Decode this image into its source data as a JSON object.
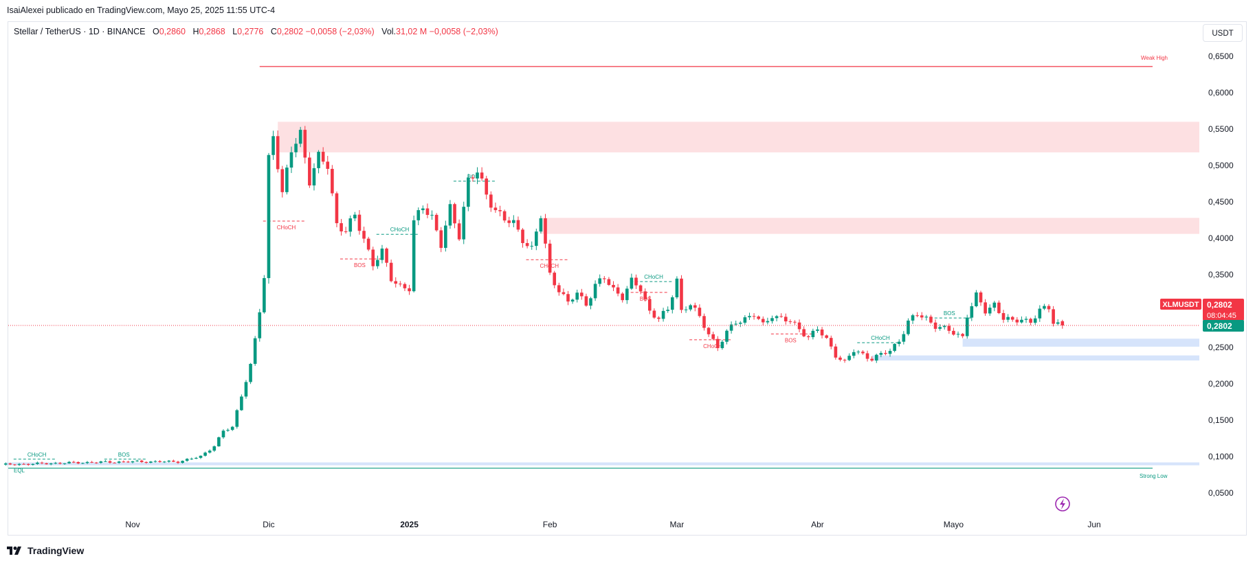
{
  "header": {
    "attribution": "IsaiAlexei publicado en TradingView.com, Mayo 25, 2025 11:55 UTC-4"
  },
  "legend": {
    "symbol": "Stellar / TetherUS · 1D · BINANCE",
    "o_label": "O",
    "o_value": "0,2860",
    "h_label": "H",
    "h_value": "0,2868",
    "l_label": "L",
    "l_value": "0,2776",
    "c_label": "C",
    "c_value": "0,2802",
    "change": "−0,0058 (−2,03%)",
    "vol_label": "Vol.",
    "vol_value": "31,02 M",
    "vol_change": "−0,0058 (−2,03%)"
  },
  "currency_button": "USDT",
  "price_tag": {
    "symbol": "XLMUSDT",
    "price": "0,2802",
    "countdown": "08:04:45",
    "line_price": "0,2802"
  },
  "footer": {
    "brand": "TradingView"
  },
  "colors": {
    "up": "#089981",
    "down": "#f23645",
    "supply_zone": "#fde0e2",
    "demand_zone": "#d6e4fb"
  },
  "chart_data": {
    "type": "candlestick",
    "ylim": [
      0.03,
      0.69
    ],
    "y_ticks": [
      "0,6500",
      "0,6000",
      "0,5500",
      "0,5000",
      "0,4500",
      "0,4000",
      "0,3500",
      "0,3000",
      "0,2500",
      "0,2000",
      "0,1500",
      "0,1000",
      "0,0500"
    ],
    "y_tick_values": [
      0.65,
      0.6,
      0.55,
      0.5,
      0.45,
      0.4,
      0.35,
      0.3,
      0.25,
      0.2,
      0.15,
      0.1,
      0.05
    ],
    "x_ticks": [
      "Nov",
      "Dic",
      "2025",
      "Feb",
      "Mar",
      "Abr",
      "Mayo",
      "Jun"
    ],
    "x_tick_days": [
      0,
      30,
      61,
      92,
      120,
      151,
      181,
      212
    ],
    "last_day": 205,
    "last_price": 0.2802,
    "anchors": [
      [
        -28,
        0.089
      ],
      [
        -10,
        0.092
      ],
      [
        0,
        0.093
      ],
      [
        10,
        0.093
      ],
      [
        15,
        0.1
      ],
      [
        18,
        0.115
      ],
      [
        20,
        0.135
      ],
      [
        22,
        0.14
      ],
      [
        24,
        0.185
      ],
      [
        25,
        0.205
      ],
      [
        26,
        0.225
      ],
      [
        27,
        0.26
      ],
      [
        28,
        0.3
      ],
      [
        29,
        0.345
      ],
      [
        30,
        0.51
      ],
      [
        31,
        0.545
      ],
      [
        33,
        0.46
      ],
      [
        35,
        0.52
      ],
      [
        37,
        0.545
      ],
      [
        39,
        0.48
      ],
      [
        41,
        0.51
      ],
      [
        43,
        0.5
      ],
      [
        45,
        0.42
      ],
      [
        47,
        0.41
      ],
      [
        49,
        0.43
      ],
      [
        51,
        0.4
      ],
      [
        53,
        0.365
      ],
      [
        55,
        0.38
      ],
      [
        57,
        0.345
      ],
      [
        59,
        0.335
      ],
      [
        61,
        0.33
      ],
      [
        62,
        0.42
      ],
      [
        64,
        0.445
      ],
      [
        66,
        0.43
      ],
      [
        68,
        0.39
      ],
      [
        70,
        0.44
      ],
      [
        72,
        0.405
      ],
      [
        74,
        0.48
      ],
      [
        76,
        0.49
      ],
      [
        78,
        0.46
      ],
      [
        80,
        0.44
      ],
      [
        82,
        0.425
      ],
      [
        84,
        0.42
      ],
      [
        86,
        0.4
      ],
      [
        88,
        0.385
      ],
      [
        90,
        0.43
      ],
      [
        91,
        0.39
      ],
      [
        92,
        0.35
      ],
      [
        94,
        0.33
      ],
      [
        96,
        0.31
      ],
      [
        98,
        0.325
      ],
      [
        100,
        0.31
      ],
      [
        102,
        0.335
      ],
      [
        104,
        0.345
      ],
      [
        106,
        0.33
      ],
      [
        108,
        0.32
      ],
      [
        110,
        0.34
      ],
      [
        112,
        0.33
      ],
      [
        114,
        0.3
      ],
      [
        116,
        0.29
      ],
      [
        118,
        0.3
      ],
      [
        120,
        0.345
      ],
      [
        121,
        0.3
      ],
      [
        123,
        0.31
      ],
      [
        125,
        0.29
      ],
      [
        127,
        0.27
      ],
      [
        129,
        0.25
      ],
      [
        131,
        0.27
      ],
      [
        133,
        0.285
      ],
      [
        135,
        0.29
      ],
      [
        137,
        0.295
      ],
      [
        139,
        0.28
      ],
      [
        141,
        0.295
      ],
      [
        143,
        0.29
      ],
      [
        145,
        0.285
      ],
      [
        147,
        0.275
      ],
      [
        149,
        0.265
      ],
      [
        151,
        0.275
      ],
      [
        153,
        0.26
      ],
      [
        155,
        0.24
      ],
      [
        157,
        0.23
      ],
      [
        159,
        0.245
      ],
      [
        161,
        0.24
      ],
      [
        163,
        0.235
      ],
      [
        165,
        0.24
      ],
      [
        167,
        0.245
      ],
      [
        169,
        0.26
      ],
      [
        171,
        0.285
      ],
      [
        173,
        0.295
      ],
      [
        175,
        0.29
      ],
      [
        177,
        0.28
      ],
      [
        179,
        0.275
      ],
      [
        181,
        0.27
      ],
      [
        183,
        0.265
      ],
      [
        184,
        0.295
      ],
      [
        186,
        0.32
      ],
      [
        188,
        0.3
      ],
      [
        190,
        0.31
      ],
      [
        192,
        0.29
      ],
      [
        194,
        0.285
      ],
      [
        196,
        0.29
      ],
      [
        198,
        0.285
      ],
      [
        200,
        0.3
      ],
      [
        202,
        0.305
      ],
      [
        203,
        0.286
      ],
      [
        205,
        0.2802
      ]
    ],
    "annotations": {
      "weak_high": {
        "label": "Weak High",
        "price": 0.636,
        "from_day": 28
      },
      "strong_low": {
        "label": "Strong Low",
        "price": 0.084
      },
      "eql": {
        "label": "EQL",
        "price": 0.086
      },
      "structure_labels": [
        {
          "text": "CHoCH",
          "day": -22,
          "price": 0.104,
          "color": "up"
        },
        {
          "text": "BOS",
          "day": -2,
          "price": 0.104,
          "color": "up"
        },
        {
          "text": "CHoCH",
          "day": 33,
          "price": 0.416,
          "color": "down"
        },
        {
          "text": "BOS",
          "day": 50,
          "price": 0.364,
          "color": "down"
        },
        {
          "text": "CHoCH",
          "day": 58,
          "price": 0.413,
          "color": "up"
        },
        {
          "text": "BOS",
          "day": 75,
          "price": 0.486,
          "color": "up"
        },
        {
          "text": "CHoCH",
          "day": 91,
          "price": 0.363,
          "color": "down"
        },
        {
          "text": "CHoCH",
          "day": 114,
          "price": 0.348,
          "color": "up"
        },
        {
          "text": "BOS",
          "day": 113,
          "price": 0.318,
          "color": "down"
        },
        {
          "text": "CHoCH",
          "day": 127,
          "price": 0.253,
          "color": "down"
        },
        {
          "text": "BOS",
          "day": 145,
          "price": 0.261,
          "color": "down"
        },
        {
          "text": "CHoCH",
          "day": 164,
          "price": 0.264,
          "color": "up"
        },
        {
          "text": "BOS",
          "day": 180,
          "price": 0.298,
          "color": "up"
        }
      ],
      "zones": [
        {
          "kind": "supply",
          "from_day": 32,
          "top": 0.56,
          "bottom": 0.518
        },
        {
          "kind": "supply",
          "from_day": 90,
          "top": 0.428,
          "bottom": 0.406
        },
        {
          "kind": "demand",
          "from_day": 183,
          "top": 0.262,
          "bottom": 0.251
        },
        {
          "kind": "demand",
          "from_day": 163,
          "top": 0.239,
          "bottom": 0.232
        },
        {
          "kind": "demand",
          "from_day": -28,
          "top": 0.092,
          "bottom": 0.088
        }
      ]
    }
  }
}
